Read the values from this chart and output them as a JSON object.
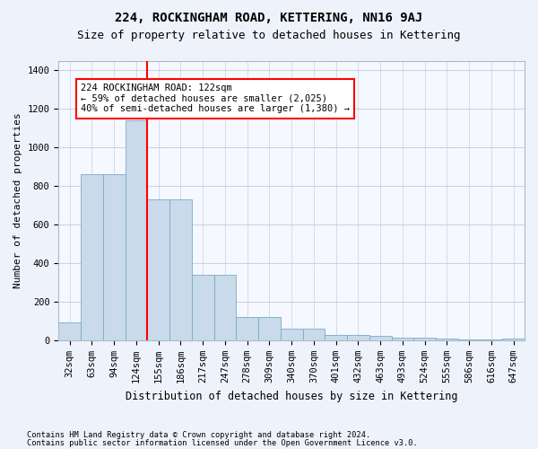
{
  "title": "224, ROCKINGHAM ROAD, KETTERING, NN16 9AJ",
  "subtitle": "Size of property relative to detached houses in Kettering",
  "xlabel": "Distribution of detached houses by size in Kettering",
  "ylabel": "Number of detached properties",
  "footnote1": "Contains HM Land Registry data © Crown copyright and database right 2024.",
  "footnote2": "Contains public sector information licensed under the Open Government Licence v3.0.",
  "bar_labels": [
    "32sqm",
    "63sqm",
    "94sqm",
    "124sqm",
    "155sqm",
    "186sqm",
    "217sqm",
    "247sqm",
    "278sqm",
    "309sqm",
    "340sqm",
    "370sqm",
    "401sqm",
    "432sqm",
    "463sqm",
    "493sqm",
    "524sqm",
    "555sqm",
    "586sqm",
    "616sqm",
    "647sqm"
  ],
  "bar_values": [
    95,
    860,
    860,
    1140,
    730,
    730,
    340,
    340,
    120,
    120,
    60,
    60,
    30,
    30,
    25,
    15,
    15,
    8,
    5,
    3,
    8
  ],
  "bar_color": "#c9daea",
  "bar_edge_color": "#7aaac8",
  "vline_x": 3.5,
  "vline_color": "red",
  "annotation_text": "224 ROCKINGHAM ROAD: 122sqm\n← 59% of detached houses are smaller (2,025)\n40% of semi-detached houses are larger (1,380) →",
  "annotation_box_color": "red",
  "ylim": [
    0,
    1450
  ],
  "yticks": [
    0,
    200,
    400,
    600,
    800,
    1000,
    1200,
    1400
  ],
  "bg_color": "#eef2fb",
  "plot_bg_color": "#f5f8ff",
  "grid_color": "#c8d0e0",
  "title_fontsize": 10,
  "subtitle_fontsize": 9,
  "tick_fontsize": 7.5,
  "ylabel_fontsize": 8,
  "xlabel_fontsize": 8.5
}
